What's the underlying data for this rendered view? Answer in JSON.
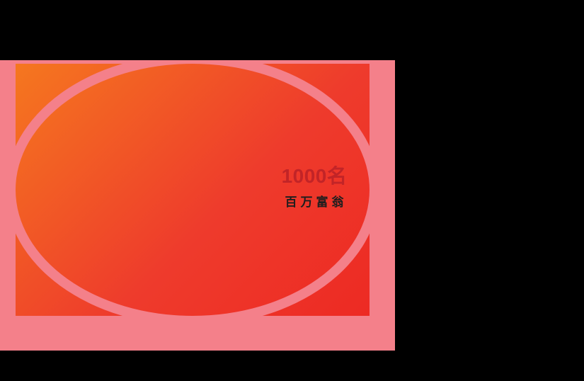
{
  "banner": {
    "headline_count": "1000名",
    "subtitle": "百万富翁"
  },
  "colors": {
    "canvas_bg": "#000000",
    "pink": "#F4808A",
    "orange": "#F5771F",
    "red": "#EE3B2C",
    "deep_red": "#ED2A23",
    "headline_color": "#C22427",
    "subtitle_color": "#1E1E1E"
  }
}
